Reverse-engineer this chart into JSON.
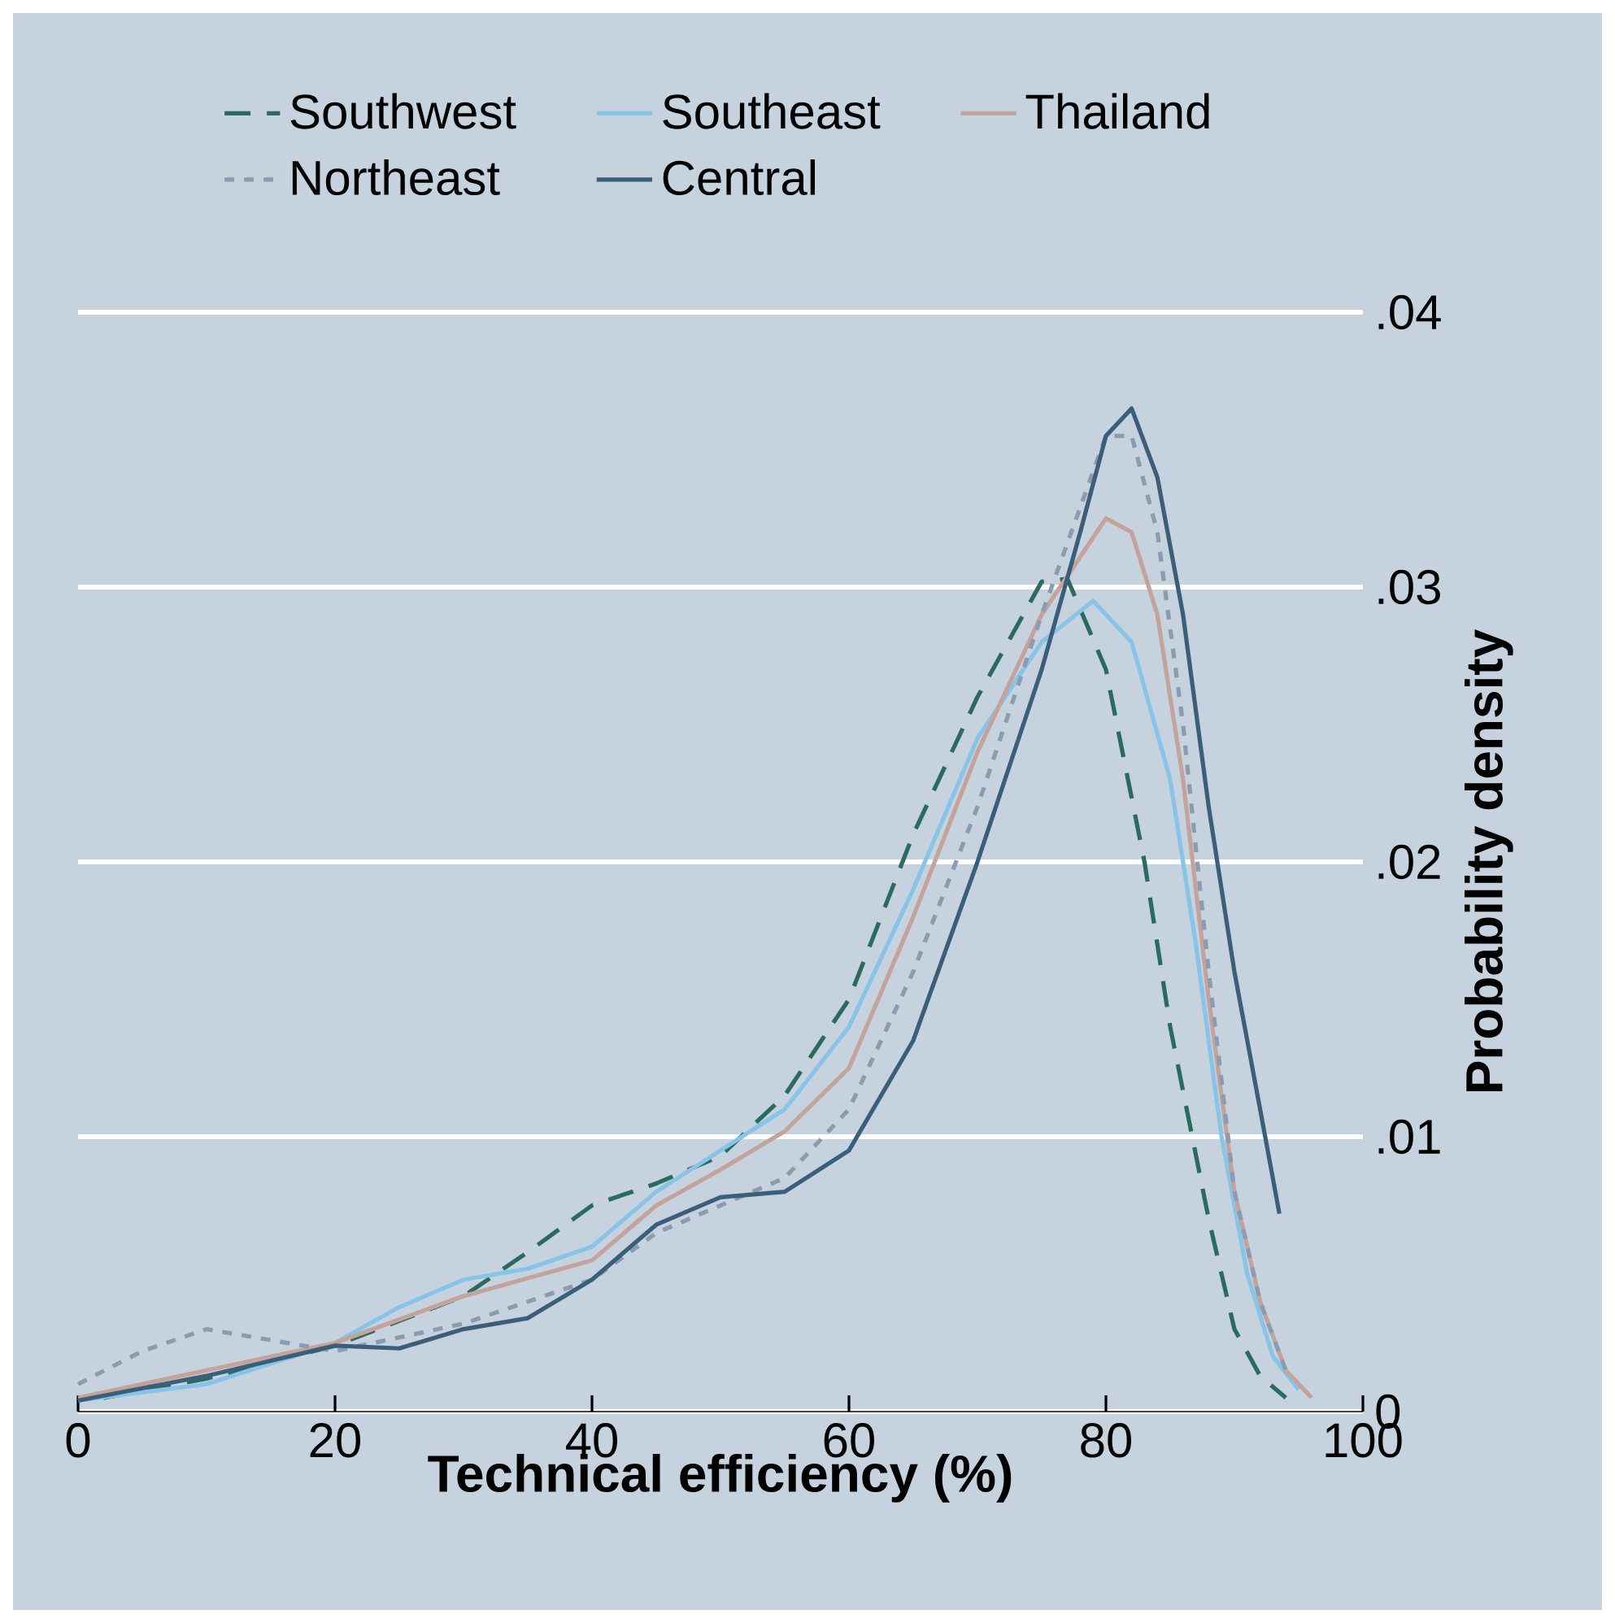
{
  "chart_data": {
    "type": "line",
    "xlabel": "Technical efficiency (%)",
    "ylabel": "Probability density",
    "xlim": [
      0,
      100
    ],
    "xticks": [
      0,
      20,
      40,
      60,
      80,
      100
    ],
    "ylim": [
      0,
      0.04
    ],
    "yticks": [
      0,
      {
        "value": 0.01,
        "label": ".01"
      },
      {
        "value": 0.02,
        "label": ".02"
      },
      {
        "value": 0.03,
        "label": ".03"
      },
      {
        "value": 0.04,
        "label": ".04"
      }
    ],
    "grid": "y",
    "legend": "top",
    "series": [
      {
        "name": "Southwest",
        "color": "#2a6b5e",
        "line_style": "dashed",
        "x": [
          2,
          10,
          20,
          30,
          35,
          40,
          45,
          50,
          55,
          60,
          65,
          70,
          75,
          77,
          80,
          83,
          85,
          88,
          90,
          92,
          94
        ],
        "values": [
          0.0005,
          0.0012,
          0.0024,
          0.0042,
          0.0058,
          0.0075,
          0.0083,
          0.0093,
          0.0115,
          0.015,
          0.021,
          0.026,
          0.0302,
          0.0303,
          0.027,
          0.02,
          0.014,
          0.007,
          0.003,
          0.0013,
          0.0005
        ]
      },
      {
        "name": "Southeast",
        "color": "#88c3e8",
        "line_style": "solid",
        "x": [
          0,
          10,
          20,
          25,
          30,
          35,
          40,
          45,
          50,
          55,
          60,
          65,
          70,
          75,
          79,
          82,
          85,
          87,
          89,
          91,
          93,
          95
        ],
        "values": [
          0.0004,
          0.001,
          0.0025,
          0.0038,
          0.0048,
          0.0052,
          0.006,
          0.008,
          0.0095,
          0.011,
          0.014,
          0.019,
          0.0245,
          0.028,
          0.0295,
          0.028,
          0.023,
          0.017,
          0.01,
          0.005,
          0.002,
          0.0008
        ]
      },
      {
        "name": "Thailand",
        "color": "#c3a39b",
        "line_style": "solid",
        "x": [
          0,
          10,
          20,
          30,
          40,
          45,
          50,
          55,
          60,
          65,
          70,
          75,
          80,
          82,
          84,
          86,
          88,
          90,
          92,
          94,
          96
        ],
        "values": [
          0.0005,
          0.0015,
          0.0025,
          0.0042,
          0.0055,
          0.0075,
          0.0088,
          0.0102,
          0.0125,
          0.018,
          0.024,
          0.029,
          0.0325,
          0.032,
          0.029,
          0.023,
          0.015,
          0.008,
          0.004,
          0.0015,
          0.0005
        ]
      },
      {
        "name": "Northeast",
        "color": "#8c9cb0",
        "line_style": "dotted",
        "x": [
          0,
          5,
          10,
          15,
          20,
          30,
          40,
          45,
          50,
          55,
          60,
          65,
          70,
          75,
          80,
          82,
          84,
          86,
          88,
          90,
          92,
          94
        ],
        "values": [
          0.001,
          0.0022,
          0.003,
          0.0026,
          0.0022,
          0.0032,
          0.0048,
          0.0065,
          0.0075,
          0.0085,
          0.011,
          0.016,
          0.022,
          0.029,
          0.0355,
          0.0355,
          0.032,
          0.025,
          0.016,
          0.008,
          0.004,
          0.0015
        ]
      },
      {
        "name": "Central",
        "color": "#3a5f7a",
        "line_style": "solid",
        "x": [
          0,
          10,
          20,
          25,
          30,
          35,
          40,
          45,
          50,
          55,
          60,
          65,
          70,
          75,
          78,
          80,
          82,
          84,
          86,
          88,
          90,
          92,
          93.5
        ],
        "values": [
          0.0004,
          0.0013,
          0.0024,
          0.0023,
          0.003,
          0.0034,
          0.0048,
          0.0068,
          0.0078,
          0.008,
          0.0095,
          0.0135,
          0.02,
          0.027,
          0.032,
          0.0355,
          0.0365,
          0.034,
          0.029,
          0.022,
          0.016,
          0.011,
          0.0072
        ]
      }
    ]
  }
}
